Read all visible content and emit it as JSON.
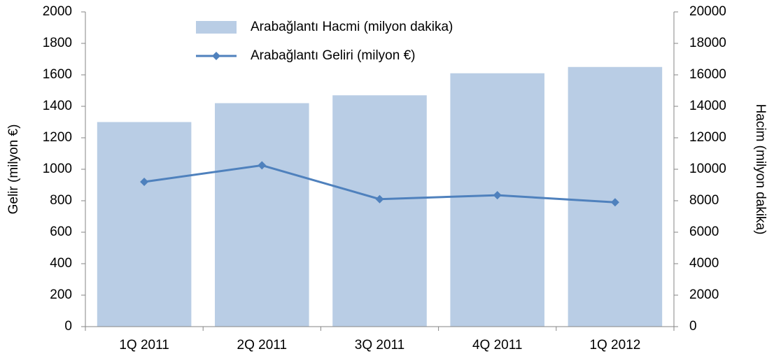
{
  "chart_data": {
    "type": "bar_line",
    "categories": [
      "1Q 2011",
      "2Q 2011",
      "3Q 2011",
      "4Q 2011",
      "1Q 2012"
    ],
    "series": [
      {
        "name": "Arabağlantı Hacmi (milyon dakika)",
        "type": "bar",
        "axis": "y2",
        "color": "#b9cde5",
        "values": [
          13000,
          14200,
          14700,
          16100,
          16500
        ]
      },
      {
        "name": "Arabağlantı Geliri (milyon €)",
        "type": "line",
        "axis": "y",
        "color": "#4f81bd",
        "values": [
          920,
          1025,
          810,
          835,
          790
        ]
      }
    ],
    "ylabel": "Gelir (milyon €)",
    "y2label": "Hacim (milyon dakika)",
    "ylim": [
      0,
      2000
    ],
    "yticks": [
      0,
      200,
      400,
      600,
      800,
      1000,
      1200,
      1400,
      1600,
      1800,
      2000
    ],
    "y2lim": [
      0,
      20000
    ],
    "y2ticks": [
      0,
      2000,
      4000,
      6000,
      8000,
      10000,
      12000,
      14000,
      16000,
      18000,
      20000
    ],
    "legend": "top"
  }
}
